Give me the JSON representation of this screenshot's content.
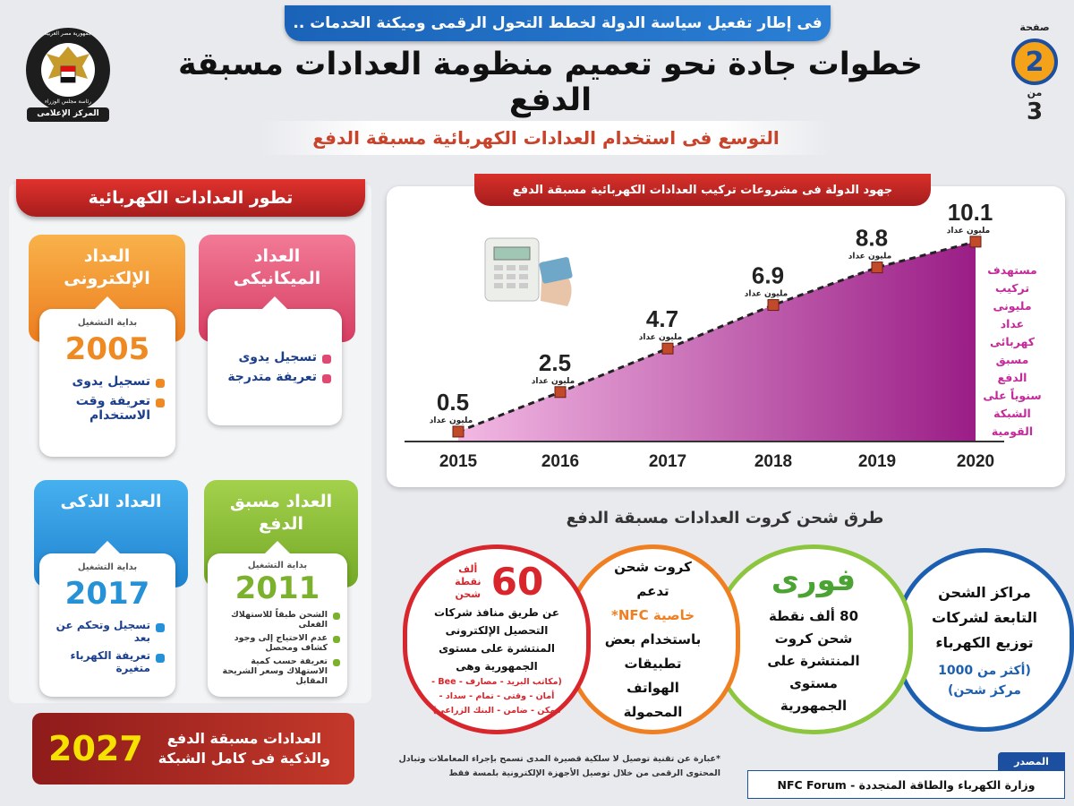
{
  "top_banner": "فى إطار تفعيل سياسة الدولة لخطط التحول الرقمى وميكنة الخدمات ..",
  "title": "خطوات جادة نحو تعميم منظومة العدادات مسبقة الدفع",
  "subtitle": "التوسع فى استخدام العدادات الكهربائية مسبقة الدفع",
  "logo": {
    "line1": "جمهورية مصر العربية",
    "line2": "رئاسة مجلس الوزراء",
    "line3": "المركز الإعلامى"
  },
  "page": {
    "label": "صفحة",
    "number": "2",
    "of_label": "من",
    "total": "3"
  },
  "meters_header": "تطور العدادات الكهربائية",
  "meters": {
    "mechanical": {
      "title": "العداد الميكانيكى",
      "color": "#e04a72",
      "features": [
        "تسجيل يدوى",
        "تعريفة متدرجة"
      ]
    },
    "electronic": {
      "title": "العداد الإلكترونى",
      "color": "#ef8a22",
      "start_label": "بداية التشغيل",
      "year": "2005",
      "features": [
        "تسجيل يدوى",
        "تعريفة وقت الاستخدام"
      ]
    },
    "prepaid": {
      "title": "العداد مسبق الدفع",
      "color": "#7bb12d",
      "start_label": "بداية التشغيل",
      "year": "2011",
      "features": [
        "الشحن طبقاً للاستهلاك الفعلى",
        "عدم الاحتياج إلى وجود كشاف ومحصل",
        "تعريفة حسب كمية الاستهلاك وسعر الشريحة المقابل"
      ]
    },
    "smart": {
      "title": "العداد الذكى",
      "color": "#2591d6",
      "start_label": "بداية التشغيل",
      "year": "2017",
      "features": [
        "تسجيل وتحكم عن بعد",
        "تعريفة الكهرباء متغيرة"
      ]
    }
  },
  "banner_2027": {
    "year": "2027",
    "text": "العدادات مسبقة الدفع والذكية فى كامل الشبكة"
  },
  "chart_title": "جهود الدولة فى مشروعات تركيب العدادات الكهربائية مسبقة الدفع",
  "chart_data": {
    "type": "area",
    "title": "جهود الدولة فى مشروعات تركيب العدادات الكهربائية مسبقة الدفع",
    "categories": [
      "2015",
      "2016",
      "2017",
      "2018",
      "2019",
      "2020"
    ],
    "values": [
      0.5,
      2.5,
      4.7,
      6.9,
      8.8,
      10.1
    ],
    "value_labels": [
      "0.5",
      "2.5",
      "4.7",
      "6.9",
      "8.8",
      "10.1"
    ],
    "unit_label": "مليون عداد",
    "ylim": [
      0,
      11
    ],
    "grid": false,
    "colors": {
      "area_light": "#f2b9e3",
      "area_dark": "#9a1d86",
      "marker": "#c14a2a"
    }
  },
  "target_note": "مستهدف تركيب مليونى عداد كهربائى مسبق الدفع سنوياً على الشبكة القومية",
  "charging_title": "طرق شحن كروت العدادات مسبقة الدفع",
  "charging": {
    "centers": {
      "text": "مراكز الشحن التابعة لشركات توزيع الكهرباء",
      "note": "(أكثر من 1000 مركز شحن)",
      "color": "#1c5fb0"
    },
    "fawry": {
      "brand": "فورى",
      "text": "80 ألف نقطة شحن كروت المنتشرة على مستوى الجمهورية",
      "color": "#8cc63f"
    },
    "nfc": {
      "line1": "كروت شحن تدعم",
      "highlight": "خاصية NFC*",
      "line2": "باستخدام بعض تطبيقات الهواتف المحمولة",
      "color": "#f07f22"
    },
    "outlets": {
      "number": "60",
      "unit": "ألف نقطة شحن",
      "text": "عن طريق منافذ شركات التحصيل الإلكترونى المنتشرة على مستوى الجمهورية وهى",
      "list": "(مكاتب البريد - مصارف - Bee - أمان - وقتى - تمام - سداد - ممكن - ضامن - البنك الزراعى)",
      "color": "#d8262c"
    }
  },
  "footnote": "*عبارة عن تقنية توصيل لا سلكية قصيرة المدى تسمح بإجراء المعاملات وتبادل المحتوى الرقمى من خلال توصيل الأجهزة الإلكترونية بلمسة فقط",
  "source": {
    "label": "المصدر",
    "text": "وزارة الكهرباء والطاقة المتجددة - NFC Forum"
  }
}
